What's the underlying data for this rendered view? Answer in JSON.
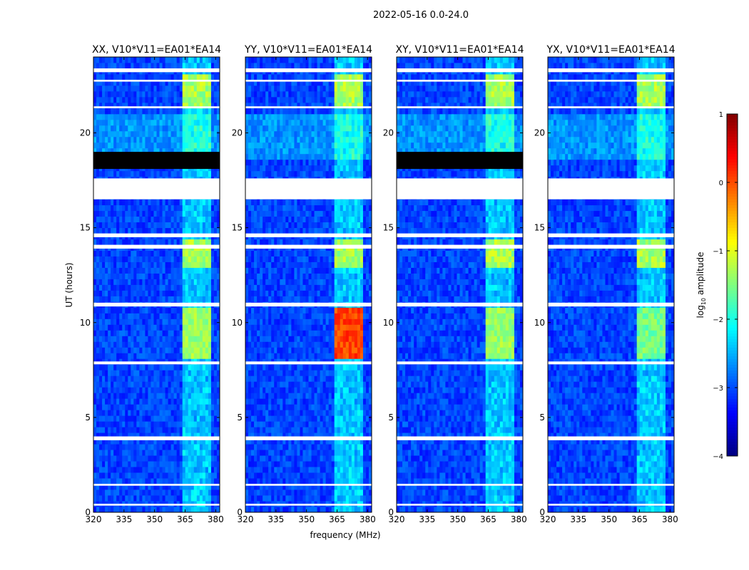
{
  "suptitle": "2022-05-16 0.0-24.0",
  "chart_data": {
    "type": "heatmap",
    "xlabel": "frequency (MHz)",
    "ylabel": "UT (hours)",
    "xlim": [
      320,
      382
    ],
    "ylim": [
      0,
      24
    ],
    "xticks": [
      "320",
      "335",
      "350",
      "365",
      "380"
    ],
    "yticks": [
      "0",
      "5",
      "10",
      "15",
      "20"
    ],
    "xtick_values": [
      320,
      335,
      350,
      365,
      380
    ],
    "ytick_values": [
      0,
      5,
      10,
      15,
      20
    ],
    "panels": [
      {
        "title": "XX, V10*V11=EA01*EA14",
        "pol": "XX",
        "flagged_block": [
          18.1,
          19.0
        ],
        "peak_10h": -1.2
      },
      {
        "title": "YY, V10*V11=EA01*EA14",
        "pol": "YY",
        "flagged_block": null,
        "peak_10h": 0.2
      },
      {
        "title": "XY, V10*V11=EA01*EA14",
        "pol": "XY",
        "flagged_block": [
          18.1,
          19.0
        ],
        "peak_10h": -1.2
      },
      {
        "title": "YX, V10*V11=EA01*EA14",
        "pol": "YX",
        "flagged_block": null,
        "peak_10h": -1.4
      }
    ],
    "rfi_band_mhz": [
      363,
      378
    ],
    "rfi_strong_hours": [
      [
        8.2,
        10.9
      ],
      [
        13.0,
        14.5
      ],
      [
        21.2,
        23.2
      ]
    ],
    "flagged_hours": [
      [
        0.35,
        0.45
      ],
      [
        1.4,
        1.5
      ],
      [
        3.8,
        4.0
      ],
      [
        7.8,
        7.95
      ],
      [
        10.85,
        11.05
      ],
      [
        13.9,
        14.1
      ],
      [
        14.5,
        14.7
      ],
      [
        16.5,
        17.6
      ],
      [
        21.3,
        21.4
      ],
      [
        22.7,
        22.8
      ],
      [
        23.2,
        23.4
      ]
    ],
    "colorbar": {
      "label": "log10 amplitude",
      "label_main": "log",
      "label_sub": "10",
      "label_rest": " amplitude",
      "vmin": -4,
      "vmax": 1,
      "ticks": [
        "1",
        "0",
        "−1",
        "−2",
        "−3",
        "−4"
      ],
      "tick_values": [
        1,
        0,
        -1,
        -2,
        -3,
        -4
      ],
      "colormap": "jet"
    }
  }
}
